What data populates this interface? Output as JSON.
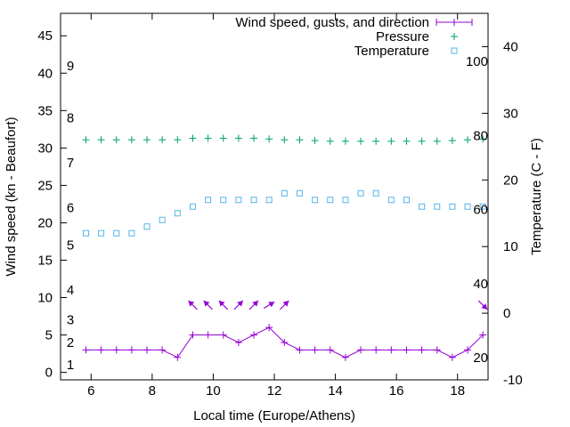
{
  "chart_data": {
    "type": "line",
    "title": "",
    "xlabel": "Local time (Europe/Athens)",
    "ylabel": "Wind speed (kn - Beaufort)",
    "y2label": "Temperature (C - F)",
    "xlim": [
      5,
      19
    ],
    "ylim": [
      -1,
      48
    ],
    "y2lim": [
      -10,
      45
    ],
    "y3lim": [
      14,
      113
    ],
    "x_ticks": [
      6,
      8,
      10,
      12,
      14,
      16,
      18
    ],
    "y_ticks": [
      0,
      5,
      10,
      15,
      20,
      25,
      30,
      35,
      40,
      45
    ],
    "y2_ticks": [
      -10,
      0,
      10,
      20,
      30,
      40
    ],
    "fahrenheit_ticks": [
      20,
      40,
      60,
      80,
      100
    ],
    "beaufort_labels": [
      {
        "label": "1",
        "knots": 1
      },
      {
        "label": "2",
        "knots": 4
      },
      {
        "label": "3",
        "knots": 7
      },
      {
        "label": "4",
        "knots": 11
      },
      {
        "label": "5",
        "knots": 17
      },
      {
        "label": "6",
        "knots": 22
      },
      {
        "label": "7",
        "knots": 28
      },
      {
        "label": "8",
        "knots": 34
      },
      {
        "label": "9",
        "knots": 41
      }
    ],
    "legend": {
      "placement": "top-right",
      "entries": [
        {
          "label": "Wind speed, gusts, and direction",
          "color": "#9400d3",
          "marker": "line-plus"
        },
        {
          "label": "Pressure",
          "color": "#009e73",
          "marker": "plus"
        },
        {
          "label": "Temperature",
          "color": "#56b4e9",
          "marker": "square"
        }
      ]
    },
    "series": [
      {
        "name": "Wind speed",
        "color": "#9400d3",
        "x": [
          5.83,
          6.33,
          6.83,
          7.33,
          7.83,
          8.33,
          8.83,
          9.33,
          9.83,
          10.33,
          10.83,
          11.33,
          11.83,
          12.33,
          12.83,
          13.33,
          13.83,
          14.33,
          14.83,
          15.33,
          15.83,
          16.33,
          16.83,
          17.33,
          17.83,
          18.33,
          18.83
        ],
        "values": [
          3,
          3,
          3,
          3,
          3,
          3,
          2,
          5,
          5,
          5,
          4,
          5,
          6,
          4,
          3,
          3,
          3,
          2,
          3,
          3,
          3,
          3,
          3,
          3,
          2,
          3,
          5
        ]
      },
      {
        "name": "Pressure",
        "color": "#009e73",
        "x": [
          5.83,
          6.33,
          6.83,
          7.33,
          7.83,
          8.33,
          8.83,
          9.33,
          9.83,
          10.33,
          10.83,
          11.33,
          11.83,
          12.33,
          12.83,
          13.33,
          13.83,
          14.33,
          14.83,
          15.33,
          15.83,
          16.33,
          16.83,
          17.33,
          17.83,
          18.33,
          18.83
        ],
        "values": [
          31.1,
          31.1,
          31.1,
          31.1,
          31.1,
          31.1,
          31.1,
          31.3,
          31.3,
          31.3,
          31.3,
          31.3,
          31.2,
          31.1,
          31.1,
          31.0,
          30.9,
          30.9,
          30.9,
          30.9,
          30.9,
          30.9,
          30.9,
          30.9,
          31.0,
          31.1,
          31.2
        ]
      },
      {
        "name": "Temperature",
        "color": "#56b4e9",
        "x": [
          5.83,
          6.33,
          6.83,
          7.33,
          7.83,
          8.33,
          8.83,
          9.33,
          9.83,
          10.33,
          10.83,
          11.33,
          11.83,
          12.33,
          12.83,
          13.33,
          13.83,
          14.33,
          14.83,
          15.33,
          15.83,
          16.33,
          16.83,
          17.33,
          17.83,
          18.33,
          18.83
        ],
        "values": [
          12,
          12,
          12,
          12,
          13,
          14,
          15,
          16,
          17,
          17,
          17,
          17,
          17,
          18,
          18,
          17,
          17,
          17,
          18,
          18,
          17,
          17,
          16,
          16,
          16,
          16,
          16
        ]
      }
    ],
    "wind_direction": {
      "color": "#9400d3",
      "level_knots": 9,
      "points": [
        {
          "x": 9.33,
          "dx": -1,
          "dy": 1
        },
        {
          "x": 9.83,
          "dx": -1,
          "dy": 1
        },
        {
          "x": 10.33,
          "dx": -1,
          "dy": 1
        },
        {
          "x": 10.83,
          "dx": 1,
          "dy": 1
        },
        {
          "x": 11.33,
          "dx": 1,
          "dy": 1
        },
        {
          "x": 11.83,
          "dx": 1,
          "dy": 0.6
        },
        {
          "x": 12.33,
          "dx": 1,
          "dy": 1
        },
        {
          "x": 18.83,
          "dx": 1,
          "dy": -1
        }
      ]
    }
  }
}
